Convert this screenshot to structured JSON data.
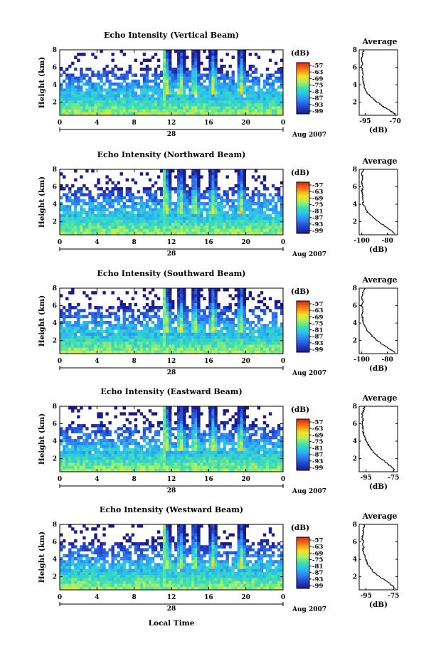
{
  "figure": {
    "xlabel_common": "Local Time",
    "date_label": "Aug 2007",
    "date_day": "28",
    "colorbar_unit": "(dB)",
    "colorbar_ticks": [
      "-57",
      "-63",
      "-69",
      "-75",
      "-81",
      "-87",
      "-93",
      "-99"
    ]
  },
  "chart_data": [
    {
      "type": "heatmap",
      "title": "Echo Intensity (Vertical Beam)",
      "ylabel": "Height (km)",
      "x_ticks": [
        "0",
        "4",
        "8",
        "12",
        "16",
        "20",
        "0"
      ],
      "y_ticks": [
        "2",
        "4",
        "6",
        "8"
      ],
      "xlim": [
        0,
        24
      ],
      "ylim": [
        0.5,
        8
      ],
      "colorbar": {
        "label": "(dB)",
        "ticks": [
          "-57",
          "-63",
          "-69",
          "-75",
          "-81",
          "-87",
          "-93",
          "-99"
        ]
      },
      "features": {
        "rain_spike_hour": 11.2,
        "convective_hours": [
          11.5,
          13,
          14.5,
          16.5,
          19.5
        ]
      },
      "profile": {
        "title": "Average",
        "xlabel": "(dB)",
        "x_ticks": [
          "-95",
          "-70"
        ],
        "xlim": [
          -100,
          -68
        ],
        "ylim": [
          0.5,
          8
        ],
        "y_ticks": [
          "2",
          "4",
          "6",
          "8"
        ],
        "y": [
          0.6,
          1,
          1.5,
          2,
          2.5,
          3,
          3.5,
          4,
          4.5,
          5,
          5.5,
          6,
          6.5,
          7,
          7.5,
          8
        ],
        "values": [
          -70,
          -74,
          -80,
          -85,
          -89,
          -93,
          -95,
          -96,
          -97,
          -97,
          -97,
          -98,
          -97,
          -98,
          -97,
          -96
        ]
      }
    },
    {
      "type": "heatmap",
      "title": "Echo Intensity (Northward Beam)",
      "ylabel": "Height (km)",
      "x_ticks": [
        "0",
        "4",
        "8",
        "12",
        "16",
        "20",
        "0"
      ],
      "y_ticks": [
        "2",
        "4",
        "6",
        "8"
      ],
      "xlim": [
        0,
        24
      ],
      "ylim": [
        0.5,
        8
      ],
      "colorbar": {
        "label": "(dB)",
        "ticks": [
          "-57",
          "-63",
          "-69",
          "-75",
          "-81",
          "-87",
          "-93",
          "-99"
        ]
      },
      "features": {
        "rain_spike_hour": 11.2,
        "convective_hours": [
          11.5,
          13,
          14.5,
          16.5,
          19.5
        ]
      },
      "profile": {
        "title": "Average",
        "xlabel": "(dB)",
        "x_ticks": [
          "-100",
          "-80"
        ],
        "xlim": [
          -102,
          -72
        ],
        "ylim": [
          0.5,
          8
        ],
        "y_ticks": [
          "2",
          "4",
          "6",
          "8"
        ],
        "y": [
          0.6,
          1,
          1.5,
          2,
          2.5,
          3,
          3.5,
          4,
          4.5,
          5,
          5.5,
          6,
          6.5,
          7,
          7.5,
          8
        ],
        "values": [
          -74,
          -77,
          -82,
          -87,
          -91,
          -95,
          -97,
          -99,
          -99,
          -99,
          -100,
          -99,
          -100,
          -99,
          -100,
          -98
        ]
      }
    },
    {
      "type": "heatmap",
      "title": "Echo Intensity (Southward Beam)",
      "ylabel": "Height (km)",
      "x_ticks": [
        "0",
        "4",
        "8",
        "12",
        "16",
        "20",
        "0"
      ],
      "y_ticks": [
        "2",
        "4",
        "6",
        "8"
      ],
      "xlim": [
        0,
        24
      ],
      "ylim": [
        0.5,
        8
      ],
      "colorbar": {
        "label": "(dB)",
        "ticks": [
          "-57",
          "-63",
          "-69",
          "-75",
          "-81",
          "-87",
          "-93",
          "-99"
        ]
      },
      "features": {
        "rain_spike_hour": 11.2,
        "convective_hours": [
          11.5,
          13,
          14.5,
          16.5,
          19.5
        ]
      },
      "profile": {
        "title": "Average",
        "xlabel": "(dB)",
        "x_ticks": [
          "-100",
          "-80"
        ],
        "xlim": [
          -102,
          -72
        ],
        "ylim": [
          0.5,
          8
        ],
        "y_ticks": [
          "2",
          "4",
          "6",
          "8"
        ],
        "y": [
          0.6,
          1,
          1.5,
          2,
          2.5,
          3,
          3.5,
          4,
          4.5,
          5,
          5.5,
          6,
          6.5,
          7,
          7.5,
          8
        ],
        "values": [
          -74,
          -78,
          -83,
          -88,
          -92,
          -95,
          -97,
          -99,
          -99,
          -100,
          -99,
          -100,
          -99,
          -100,
          -99,
          -98
        ]
      }
    },
    {
      "type": "heatmap",
      "title": "Echo Intensity (Eastward Beam)",
      "ylabel": "Height (km)",
      "x_ticks": [
        "0",
        "4",
        "8",
        "12",
        "16",
        "20",
        "0"
      ],
      "y_ticks": [
        "2",
        "4",
        "6",
        "8"
      ],
      "xlim": [
        0,
        24
      ],
      "ylim": [
        0.5,
        8
      ],
      "colorbar": {
        "label": "(dB)",
        "ticks": [
          "-57",
          "-63",
          "-69",
          "-75",
          "-81",
          "-87",
          "-93",
          "-99"
        ]
      },
      "features": {
        "rain_spike_hour": 11.2,
        "convective_hours": [
          11.5,
          13,
          14.5,
          16.5,
          19.5
        ]
      },
      "profile": {
        "title": "Average",
        "xlabel": "(dB)",
        "x_ticks": [
          "-95",
          "-75"
        ],
        "xlim": [
          -100,
          -72
        ],
        "ylim": [
          0.5,
          8
        ],
        "y_ticks": [
          "2",
          "4",
          "6",
          "8"
        ],
        "y": [
          0.6,
          1,
          1.5,
          2,
          2.5,
          3,
          3.5,
          4,
          4.5,
          5,
          5.5,
          6,
          6.5,
          7,
          7.5,
          8
        ],
        "values": [
          -74,
          -76,
          -80,
          -84,
          -88,
          -91,
          -93,
          -95,
          -96,
          -97,
          -97,
          -98,
          -97,
          -98,
          -97,
          -96
        ]
      }
    },
    {
      "type": "heatmap",
      "title": "Echo Intensity (Westward Beam)",
      "ylabel": "Height (km)",
      "x_ticks": [
        "0",
        "4",
        "8",
        "12",
        "16",
        "20",
        "0"
      ],
      "y_ticks": [
        "2",
        "4",
        "6",
        "8"
      ],
      "xlim": [
        0,
        24
      ],
      "ylim": [
        0.5,
        8
      ],
      "colorbar": {
        "label": "(dB)",
        "ticks": [
          "-57",
          "-63",
          "-69",
          "-75",
          "-81",
          "-87",
          "-93",
          "-99"
        ]
      },
      "features": {
        "rain_spike_hour": 11.2,
        "convective_hours": [
          11.5,
          13,
          14.5,
          16.5,
          19.5
        ]
      },
      "profile": {
        "title": "Average",
        "xlabel": "(dB)",
        "x_ticks": [
          "-95",
          "-75"
        ],
        "xlim": [
          -100,
          -72
        ],
        "ylim": [
          0.5,
          8
        ],
        "y_ticks": [
          "2",
          "4",
          "6",
          "8"
        ],
        "y": [
          0.6,
          1,
          1.5,
          2,
          2.5,
          3,
          3.5,
          4,
          4.5,
          5,
          5.5,
          6,
          6.5,
          7,
          7.5,
          8
        ],
        "values": [
          -73,
          -76,
          -80,
          -85,
          -89,
          -92,
          -94,
          -95,
          -96,
          -97,
          -97,
          -97,
          -98,
          -97,
          -97,
          -96
        ]
      }
    }
  ]
}
